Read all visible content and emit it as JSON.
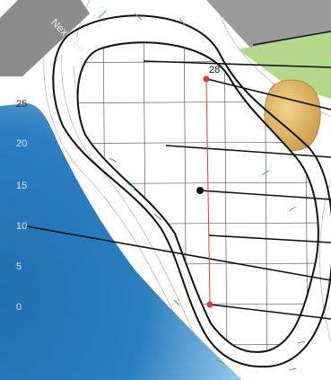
{
  "labels": {
    "next_tee": "Next Tee",
    "pin_distance": "28"
  },
  "scale": [
    "25",
    "20",
    "15",
    "10",
    "5",
    "0"
  ]
}
